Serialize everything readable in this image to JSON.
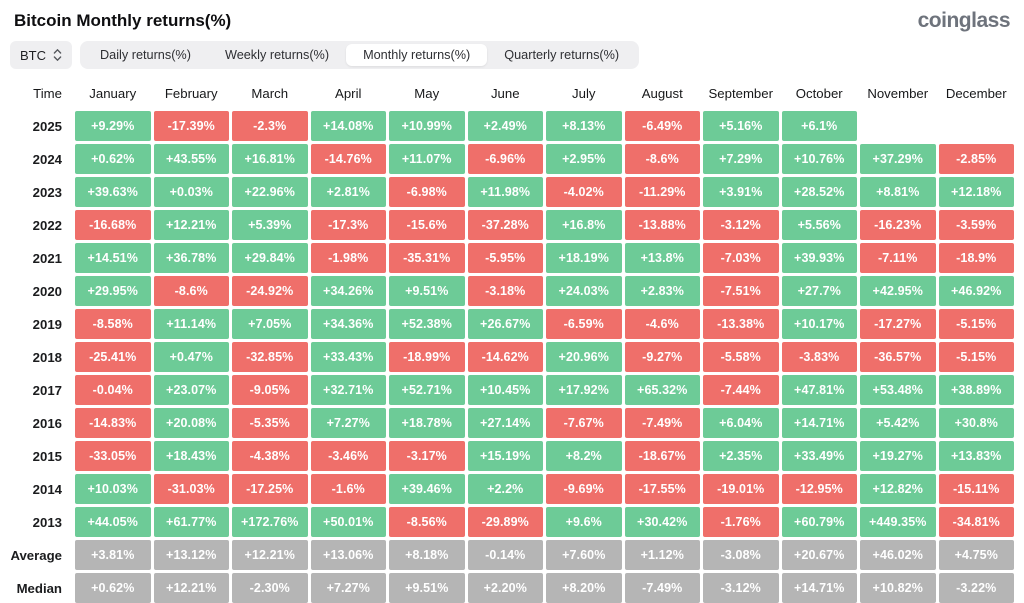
{
  "header": {
    "title": "Bitcoin Monthly returns(%)",
    "logo": "coinglass"
  },
  "toolbar": {
    "symbol_select": {
      "value": "BTC",
      "icon": "updown-arrows-icon"
    },
    "tabs": [
      {
        "label": "Daily returns(%)",
        "active": false
      },
      {
        "label": "Weekly returns(%)",
        "active": false
      },
      {
        "label": "Monthly returns(%)",
        "active": true
      },
      {
        "label": "Quarterly returns(%)",
        "active": false
      }
    ]
  },
  "colors": {
    "positive": "#6DCB97",
    "negative": "#EF6F6A",
    "neutral": "#B5B5B5",
    "cell_text": "#FFFFFF"
  },
  "chart_data": {
    "type": "table",
    "title": "Bitcoin Monthly returns(%)",
    "time_header": "Time",
    "columns": [
      "January",
      "February",
      "March",
      "April",
      "May",
      "June",
      "July",
      "August",
      "September",
      "October",
      "November",
      "December"
    ],
    "rows": [
      {
        "label": "2025",
        "values": [
          "+9.29%",
          "-17.39%",
          "-2.3%",
          "+14.08%",
          "+10.99%",
          "+2.49%",
          "+8.13%",
          "-6.49%",
          "+5.16%",
          "+6.1%",
          "",
          ""
        ]
      },
      {
        "label": "2024",
        "values": [
          "+0.62%",
          "+43.55%",
          "+16.81%",
          "-14.76%",
          "+11.07%",
          "-6.96%",
          "+2.95%",
          "-8.6%",
          "+7.29%",
          "+10.76%",
          "+37.29%",
          "-2.85%"
        ]
      },
      {
        "label": "2023",
        "values": [
          "+39.63%",
          "+0.03%",
          "+22.96%",
          "+2.81%",
          "-6.98%",
          "+11.98%",
          "-4.02%",
          "-11.29%",
          "+3.91%",
          "+28.52%",
          "+8.81%",
          "+12.18%"
        ]
      },
      {
        "label": "2022",
        "values": [
          "-16.68%",
          "+12.21%",
          "+5.39%",
          "-17.3%",
          "-15.6%",
          "-37.28%",
          "+16.8%",
          "-13.88%",
          "-3.12%",
          "+5.56%",
          "-16.23%",
          "-3.59%"
        ]
      },
      {
        "label": "2021",
        "values": [
          "+14.51%",
          "+36.78%",
          "+29.84%",
          "-1.98%",
          "-35.31%",
          "-5.95%",
          "+18.19%",
          "+13.8%",
          "-7.03%",
          "+39.93%",
          "-7.11%",
          "-18.9%"
        ]
      },
      {
        "label": "2020",
        "values": [
          "+29.95%",
          "-8.6%",
          "-24.92%",
          "+34.26%",
          "+9.51%",
          "-3.18%",
          "+24.03%",
          "+2.83%",
          "-7.51%",
          "+27.7%",
          "+42.95%",
          "+46.92%"
        ]
      },
      {
        "label": "2019",
        "values": [
          "-8.58%",
          "+11.14%",
          "+7.05%",
          "+34.36%",
          "+52.38%",
          "+26.67%",
          "-6.59%",
          "-4.6%",
          "-13.38%",
          "+10.17%",
          "-17.27%",
          "-5.15%"
        ]
      },
      {
        "label": "2018",
        "values": [
          "-25.41%",
          "+0.47%",
          "-32.85%",
          "+33.43%",
          "-18.99%",
          "-14.62%",
          "+20.96%",
          "-9.27%",
          "-5.58%",
          "-3.83%",
          "-36.57%",
          "-5.15%"
        ]
      },
      {
        "label": "2017",
        "values": [
          "-0.04%",
          "+23.07%",
          "-9.05%",
          "+32.71%",
          "+52.71%",
          "+10.45%",
          "+17.92%",
          "+65.32%",
          "-7.44%",
          "+47.81%",
          "+53.48%",
          "+38.89%"
        ]
      },
      {
        "label": "2016",
        "values": [
          "-14.83%",
          "+20.08%",
          "-5.35%",
          "+7.27%",
          "+18.78%",
          "+27.14%",
          "-7.67%",
          "-7.49%",
          "+6.04%",
          "+14.71%",
          "+5.42%",
          "+30.8%"
        ]
      },
      {
        "label": "2015",
        "values": [
          "-33.05%",
          "+18.43%",
          "-4.38%",
          "-3.46%",
          "-3.17%",
          "+15.19%",
          "+8.2%",
          "-18.67%",
          "+2.35%",
          "+33.49%",
          "+19.27%",
          "+13.83%"
        ]
      },
      {
        "label": "2014",
        "values": [
          "+10.03%",
          "-31.03%",
          "-17.25%",
          "-1.6%",
          "+39.46%",
          "+2.2%",
          "-9.69%",
          "-17.55%",
          "-19.01%",
          "-12.95%",
          "+12.82%",
          "-15.11%"
        ]
      },
      {
        "label": "2013",
        "values": [
          "+44.05%",
          "+61.77%",
          "+172.76%",
          "+50.01%",
          "-8.56%",
          "-29.89%",
          "+9.6%",
          "+30.42%",
          "-1.76%",
          "+60.79%",
          "+449.35%",
          "-34.81%"
        ]
      },
      {
        "label": "Average",
        "neutral": true,
        "values": [
          "+3.81%",
          "+13.12%",
          "+12.21%",
          "+13.06%",
          "+8.18%",
          "-0.14%",
          "+7.60%",
          "+1.12%",
          "-3.08%",
          "+20.67%",
          "+46.02%",
          "+4.75%"
        ]
      },
      {
        "label": "Median",
        "neutral": true,
        "values": [
          "+0.62%",
          "+12.21%",
          "-2.30%",
          "+7.27%",
          "+9.51%",
          "+2.20%",
          "+8.20%",
          "-7.49%",
          "-3.12%",
          "+14.71%",
          "+10.82%",
          "-3.22%"
        ]
      }
    ]
  }
}
